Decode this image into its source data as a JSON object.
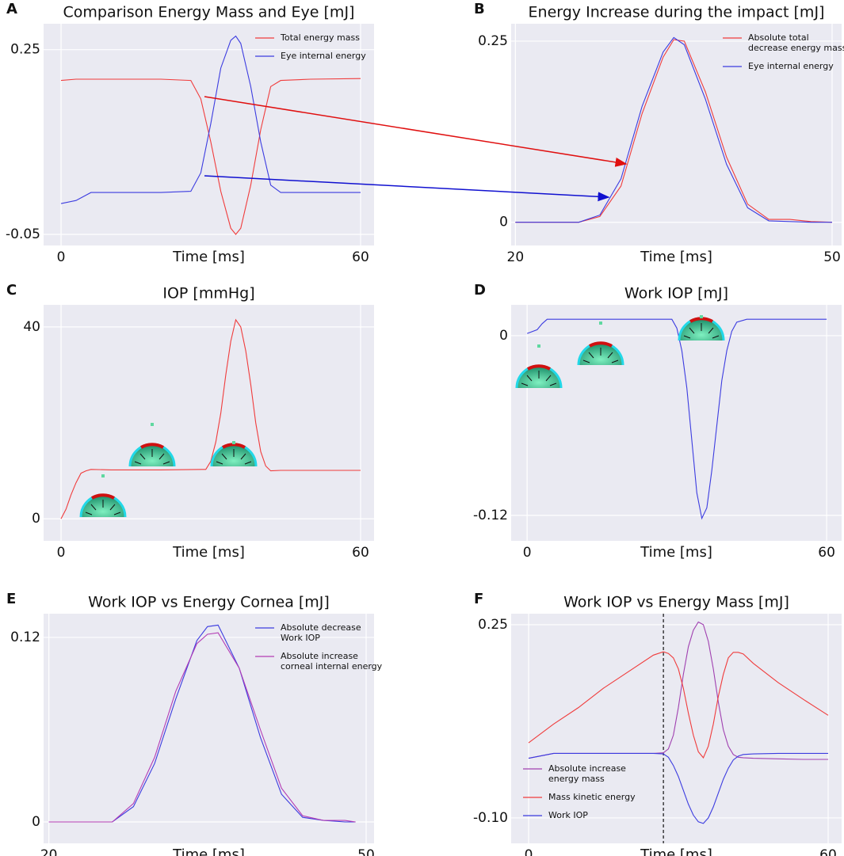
{
  "chart_data": [
    {
      "type": "line",
      "panel": "A",
      "title": "Comparison Energy Mass and Eye [mJ]",
      "x_label": "Time [ms]",
      "x": [
        0,
        3,
        6,
        10,
        20,
        26,
        28,
        30,
        32,
        34,
        35,
        36,
        38,
        40,
        42,
        44,
        50,
        60
      ],
      "series": [
        {
          "name": "Total energy mass",
          "color": "#f03c3c",
          "values": [
            0.2,
            0.202,
            0.202,
            0.202,
            0.202,
            0.2,
            0.17,
            0.1,
            0.02,
            -0.04,
            -0.05,
            -0.04,
            0.03,
            0.12,
            0.19,
            0.2,
            0.202,
            0.203
          ]
        },
        {
          "name": "Eye internal energy",
          "color": "#3c3ce0",
          "values": [
            0,
            0.005,
            0.018,
            0.018,
            0.018,
            0.02,
            0.05,
            0.13,
            0.22,
            0.265,
            0.272,
            0.26,
            0.19,
            0.1,
            0.03,
            0.018,
            0.018,
            0.018
          ]
        }
      ],
      "xlim": [
        -3.5,
        62.7
      ],
      "xticks": [
        0,
        60
      ],
      "ylim": [
        -0.068,
        0.292
      ],
      "yticks": [
        -0.05,
        0.25
      ],
      "grid": true,
      "legend": "upper right"
    },
    {
      "type": "line",
      "panel": "B",
      "title": "Energy Increase during the impact [mJ]",
      "x_label": "Time [ms]",
      "x": [
        20,
        26,
        28,
        30,
        32,
        34,
        35,
        36,
        38,
        40,
        42,
        44,
        46,
        48,
        50
      ],
      "series": [
        {
          "name": "Absolute total decrease energy mass",
          "color": "#f03c3c",
          "values": [
            0,
            0,
            0.008,
            0.05,
            0.15,
            0.228,
            0.252,
            0.25,
            0.18,
            0.09,
            0.025,
            0.004,
            0.004,
            0.001,
            0
          ]
        },
        {
          "name": "Eye internal energy",
          "color": "#3c3ce0",
          "values": [
            0,
            0,
            0.01,
            0.06,
            0.16,
            0.235,
            0.255,
            0.245,
            0.17,
            0.08,
            0.02,
            0.002,
            0.001,
            0,
            0
          ]
        }
      ],
      "xlim": [
        19.6,
        50.9
      ],
      "xticks": [
        20,
        50
      ],
      "ylim": [
        -0.032,
        0.274
      ],
      "yticks": [
        0,
        0.25
      ],
      "grid": true,
      "legend": "upper right"
    },
    {
      "type": "line",
      "panel": "C",
      "title": "IOP [mmHg]",
      "x_label": "Time [ms]",
      "x": [
        0,
        1,
        2,
        3,
        4,
        5,
        6,
        10,
        20,
        29,
        30,
        31,
        32,
        33,
        34,
        35,
        36,
        37,
        38,
        39,
        40,
        41,
        42,
        44,
        50,
        60
      ],
      "series": [
        {
          "color": "#f03c3c",
          "values": [
            0,
            2,
            5,
            7.5,
            9.5,
            10,
            10.3,
            10.2,
            10.2,
            10.3,
            12,
            16,
            22,
            30,
            37,
            41.5,
            40,
            35,
            28,
            20,
            14,
            11,
            10,
            10.1,
            10.1,
            10.1
          ]
        }
      ],
      "xlim": [
        -3.5,
        62.7
      ],
      "xticks": [
        0,
        60
      ],
      "ylim": [
        -4.6,
        44.6
      ],
      "yticks": [
        0,
        40
      ],
      "grid": true
    },
    {
      "type": "line",
      "panel": "D",
      "title": "Work IOP [mJ]",
      "x_label": "Time [ms]",
      "x": [
        0,
        2,
        3,
        4,
        5,
        10,
        20,
        29,
        30,
        31,
        32,
        33,
        34,
        35,
        36,
        37,
        38,
        39,
        40,
        41,
        42,
        44,
        50,
        60
      ],
      "series": [
        {
          "color": "#3c3ce0",
          "values": [
            0.0015,
            0.004,
            0.008,
            0.011,
            0.011,
            0.011,
            0.011,
            0.011,
            0.005,
            -0.01,
            -0.035,
            -0.07,
            -0.105,
            -0.122,
            -0.115,
            -0.09,
            -0.06,
            -0.03,
            -0.01,
            0.003,
            0.009,
            0.011,
            0.011,
            0.011
          ]
        }
      ],
      "xlim": [
        -3.2,
        63
      ],
      "xticks": [
        0,
        60
      ],
      "ylim": [
        -0.137,
        0.0206
      ],
      "yticks": [
        -0.12,
        0
      ],
      "grid": true
    },
    {
      "type": "line",
      "panel": "E",
      "title": "Work IOP vs Energy Cornea [mJ]",
      "x_label": "Time [ms]",
      "x": [
        20,
        26,
        28,
        30,
        32,
        34,
        35,
        36,
        38,
        40,
        42,
        44,
        46,
        48,
        49
      ],
      "series": [
        {
          "name": "Absolute decrease Work IOP",
          "color": "#3c3ce0",
          "values": [
            0,
            0,
            0.01,
            0.038,
            0.08,
            0.118,
            0.127,
            0.128,
            0.1,
            0.055,
            0.018,
            0.003,
            0.001,
            0,
            0
          ]
        },
        {
          "name": "Absolute increase corneal internal energy",
          "color": "#b43cb4",
          "values": [
            0,
            0,
            0.012,
            0.042,
            0.085,
            0.116,
            0.122,
            0.123,
            0.1,
            0.06,
            0.022,
            0.004,
            0.001,
            0.001,
            0
          ]
        }
      ],
      "xlim": [
        19.5,
        50.75
      ],
      "xticks": [
        20,
        50
      ],
      "ylim": [
        -0.0139,
        0.1354
      ],
      "yticks": [
        0,
        0.12
      ],
      "grid": true,
      "legend": "upper right"
    },
    {
      "type": "line",
      "panel": "F",
      "title": "Work IOP vs Energy Mass [mJ]",
      "x_label": "Time [ms]",
      "x": [
        0,
        5,
        10,
        15,
        20,
        25,
        27,
        28,
        29,
        30,
        31,
        32,
        33,
        34,
        35,
        36,
        37,
        38,
        39,
        40,
        41,
        42,
        43,
        45,
        50,
        55,
        60
      ],
      "series": [
        {
          "name": "Absolute increase energy mass",
          "color": "#a040b0",
          "values": [
            0.008,
            0.017,
            0.017,
            0.017,
            0.017,
            0.017,
            0.018,
            0.025,
            0.05,
            0.1,
            0.16,
            0.21,
            0.24,
            0.255,
            0.25,
            0.22,
            0.17,
            0.11,
            0.06,
            0.03,
            0.015,
            0.01,
            0.009,
            0.008,
            0.007,
            0.006,
            0.006
          ]
        },
        {
          "name": "Mass kinetic energy",
          "color": "#f03c3c",
          "values": [
            0.036,
            0.07,
            0.1,
            0.135,
            0.165,
            0.195,
            0.201,
            0.198,
            0.19,
            0.17,
            0.135,
            0.09,
            0.05,
            0.02,
            0.009,
            0.03,
            0.07,
            0.12,
            0.16,
            0.19,
            0.2,
            0.2,
            0.197,
            0.18,
            0.145,
            0.115,
            0.086
          ]
        },
        {
          "name": "Work IOP",
          "color": "#3c3ce0",
          "values": [
            0.008,
            0.017,
            0.017,
            0.017,
            0.017,
            0.017,
            0.016,
            0.01,
            -0.005,
            -0.025,
            -0.05,
            -0.075,
            -0.095,
            -0.107,
            -0.11,
            -0.1,
            -0.08,
            -0.055,
            -0.03,
            -0.01,
            0.005,
            0.012,
            0.015,
            0.016,
            0.017,
            0.017,
            0.017
          ]
        }
      ],
      "xlim": [
        -3.5,
        62.7
      ],
      "xticks": [
        0,
        60
      ],
      "ylim": [
        -0.146,
        0.27
      ],
      "yticks": [
        {
          "value": -0.1,
          "label": "-0.10"
        },
        0.25
      ],
      "vline": 27,
      "grid": true,
      "legend": "lower left"
    }
  ]
}
